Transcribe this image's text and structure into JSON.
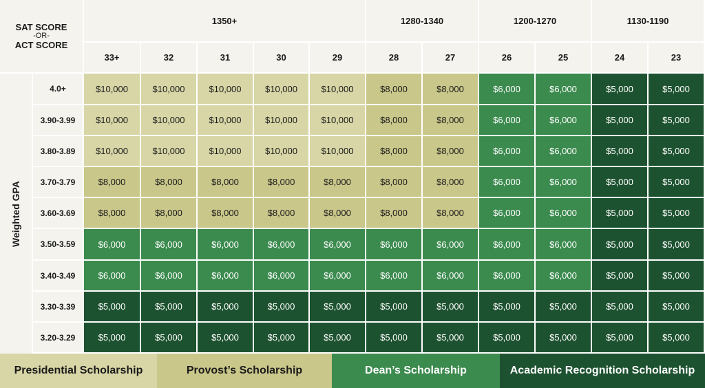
{
  "chart_data": {
    "type": "table",
    "corner": {
      "line1": "SAT SCORE",
      "line2": "-OR-",
      "line3": "ACT SCORE"
    },
    "sat_groups": [
      {
        "label": "1350+",
        "span": 5
      },
      {
        "label": "1280-1340",
        "span": 2
      },
      {
        "label": "1200-1270",
        "span": 2
      },
      {
        "label": "1130-1190",
        "span": 2
      }
    ],
    "act_scores": [
      "33+",
      "32",
      "31",
      "30",
      "29",
      "28",
      "27",
      "26",
      "25",
      "24",
      "23"
    ],
    "row_axis_label": "Weighted GPA",
    "gpa_rows": [
      "4.0+",
      "3.90-3.99",
      "3.80-3.89",
      "3.70-3.79",
      "3.60-3.69",
      "3.50-3.59",
      "3.40-3.49",
      "3.30-3.39",
      "3.20-3.29"
    ],
    "values": [
      [
        "$10,000",
        "$10,000",
        "$10,000",
        "$10,000",
        "$10,000",
        "$8,000",
        "$8,000",
        "$6,000",
        "$6,000",
        "$5,000",
        "$5,000"
      ],
      [
        "$10,000",
        "$10,000",
        "$10,000",
        "$10,000",
        "$10,000",
        "$8,000",
        "$8,000",
        "$6,000",
        "$6,000",
        "$5,000",
        "$5,000"
      ],
      [
        "$10,000",
        "$10,000",
        "$10,000",
        "$10,000",
        "$10,000",
        "$8,000",
        "$8,000",
        "$6,000",
        "$6,000",
        "$5,000",
        "$5,000"
      ],
      [
        "$8,000",
        "$8,000",
        "$8,000",
        "$8,000",
        "$8,000",
        "$8,000",
        "$8,000",
        "$6,000",
        "$6,000",
        "$5,000",
        "$5,000"
      ],
      [
        "$8,000",
        "$8,000",
        "$8,000",
        "$8,000",
        "$8,000",
        "$8,000",
        "$8,000",
        "$6,000",
        "$6,000",
        "$5,000",
        "$5,000"
      ],
      [
        "$6,000",
        "$6,000",
        "$6,000",
        "$6,000",
        "$6,000",
        "$6,000",
        "$6,000",
        "$6,000",
        "$6,000",
        "$5,000",
        "$5,000"
      ],
      [
        "$6,000",
        "$6,000",
        "$6,000",
        "$6,000",
        "$6,000",
        "$6,000",
        "$6,000",
        "$6,000",
        "$6,000",
        "$5,000",
        "$5,000"
      ],
      [
        "$5,000",
        "$5,000",
        "$5,000",
        "$5,000",
        "$5,000",
        "$5,000",
        "$5,000",
        "$5,000",
        "$5,000",
        "$5,000",
        "$5,000"
      ],
      [
        "$5,000",
        "$5,000",
        "$5,000",
        "$5,000",
        "$5,000",
        "$5,000",
        "$5,000",
        "$5,000",
        "$5,000",
        "$5,000",
        "$5,000"
      ]
    ],
    "legend": [
      {
        "label": "Presidential Scholarship",
        "value": "$10,000",
        "color": "#d8d6a6",
        "text_color": "#1a1a1a"
      },
      {
        "label": "Provost’s Scholarship",
        "value": "$8,000",
        "color": "#c9c78a",
        "text_color": "#1a1a1a"
      },
      {
        "label": "Dean’s Scholarship",
        "value": "$6,000",
        "color": "#3b8a4e",
        "text_color": "#ffffff"
      },
      {
        "label": "Academic Recognition Scholarship",
        "value": "$5,000",
        "color": "#1d5230",
        "text_color": "#ffffff"
      }
    ]
  }
}
